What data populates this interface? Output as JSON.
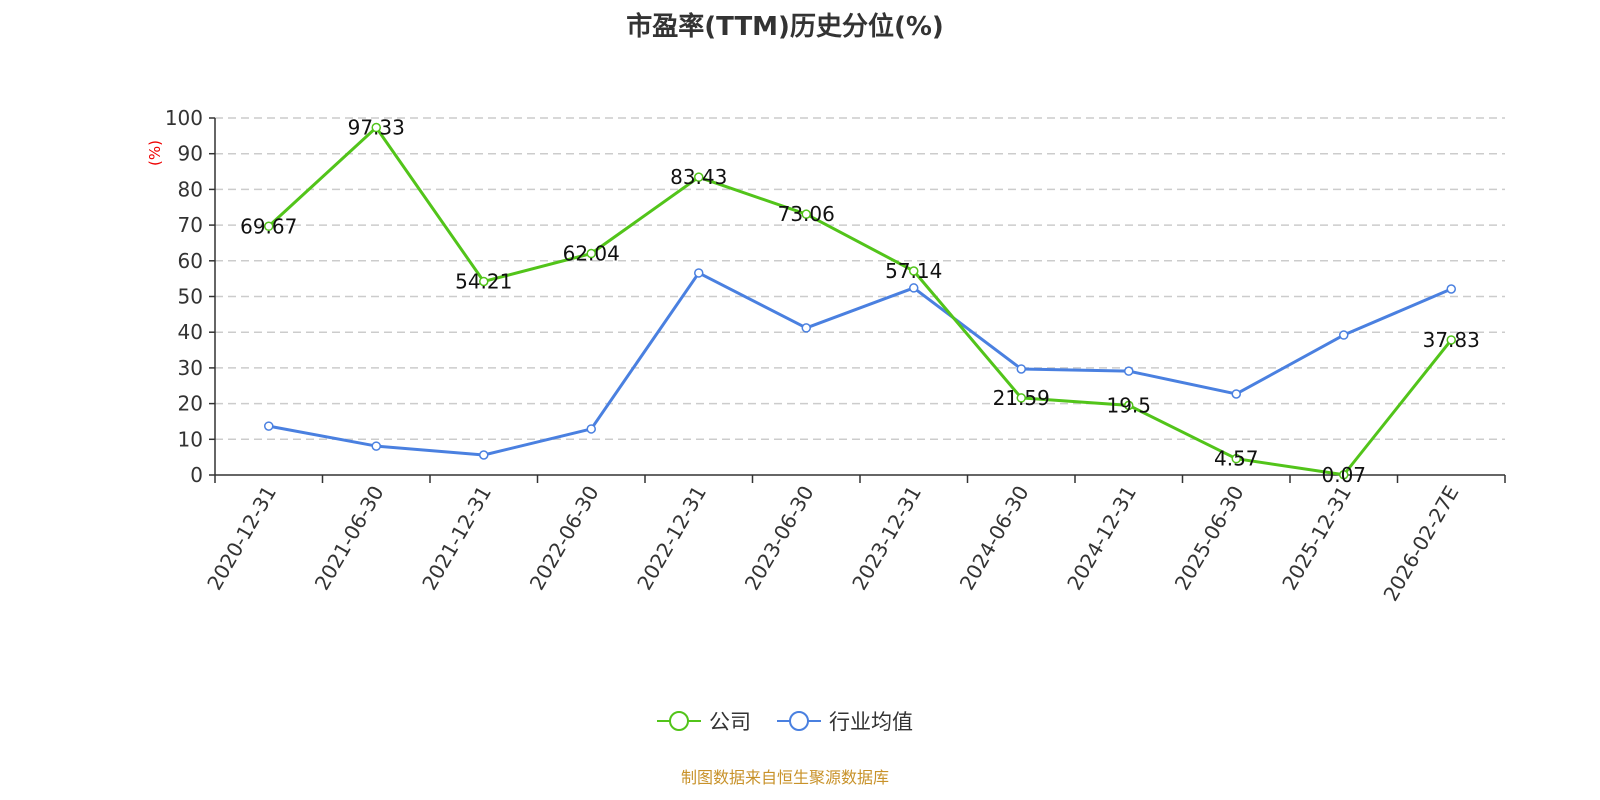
{
  "chart_data": {
    "type": "line",
    "title": "市盈率(TTM)历史分位(%)",
    "ylabel": "(%)",
    "xlabel": "",
    "ylim": [
      0,
      100
    ],
    "yticks": [
      0,
      10,
      20,
      30,
      40,
      50,
      60,
      70,
      80,
      90,
      100
    ],
    "grid": true,
    "legend_position": "bottom",
    "categories": [
      "2020-12-31",
      "2021-06-30",
      "2021-12-31",
      "2022-06-30",
      "2022-12-31",
      "2023-06-30",
      "2023-12-31",
      "2024-06-30",
      "2024-12-31",
      "2025-06-30",
      "2025-12-31",
      "2026-02-27E"
    ],
    "series": [
      {
        "name": "公司",
        "color": "#52c41a",
        "labels": true,
        "values": [
          69.67,
          97.33,
          54.21,
          62.04,
          83.43,
          73.06,
          57.14,
          21.59,
          19.5,
          4.57,
          0.07,
          37.83
        ]
      },
      {
        "name": "行业均值",
        "color": "#4a80e0",
        "labels": false,
        "values": [
          13.7,
          8.1,
          5.6,
          12.9,
          56.6,
          41.2,
          52.4,
          29.7,
          29.1,
          22.7,
          39.2,
          52.1
        ]
      }
    ]
  },
  "source": "制图数据来自恒生聚源数据库"
}
